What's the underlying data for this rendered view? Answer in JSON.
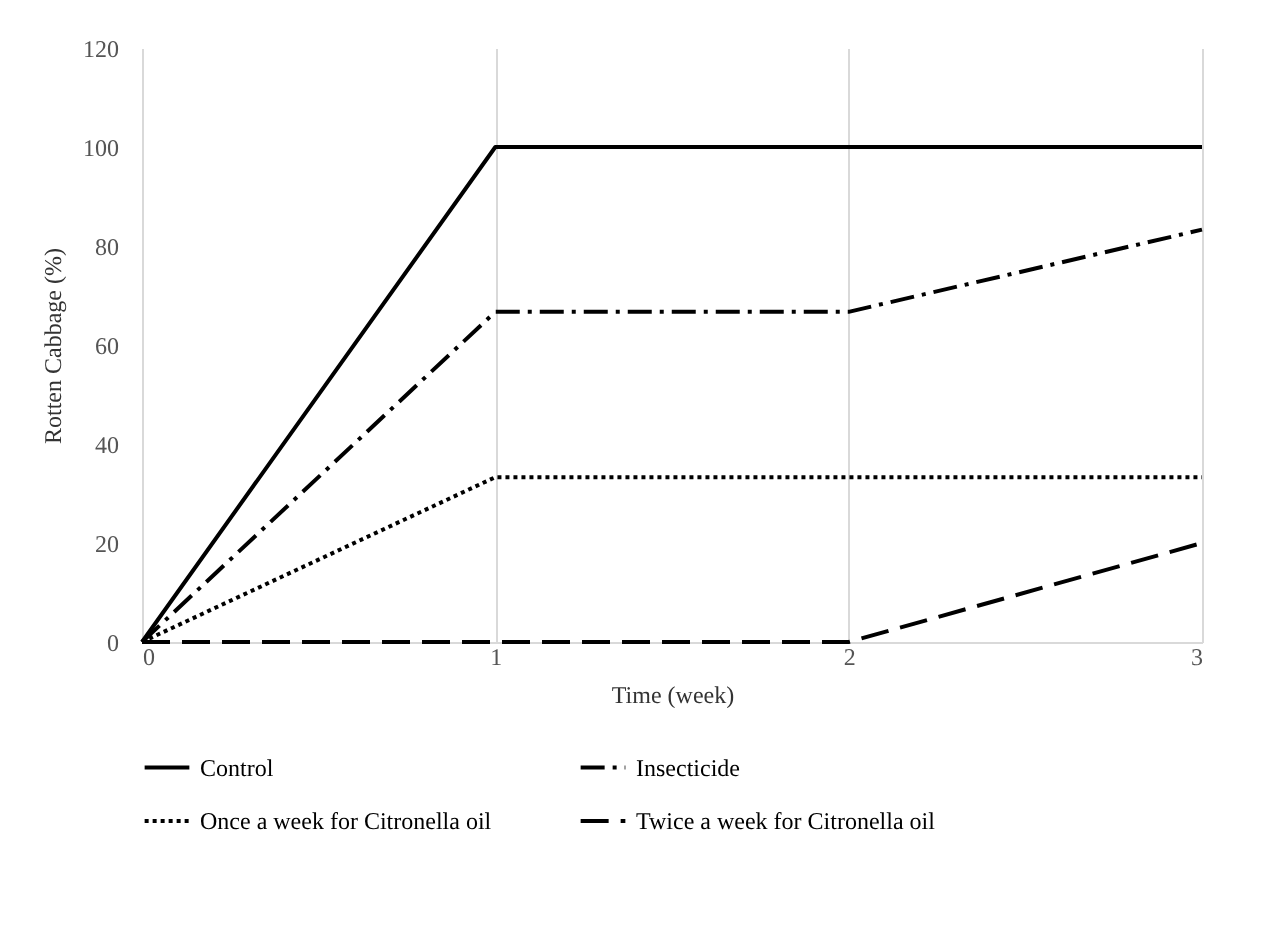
{
  "chart_data": {
    "type": "line",
    "xlabel": "Time (week)",
    "ylabel": "Rotten Cabbage (%)",
    "x": [
      0,
      1,
      2,
      3
    ],
    "xlim": [
      0,
      3
    ],
    "xticks": [
      0,
      1,
      2,
      3
    ],
    "ylim": [
      0,
      120
    ],
    "yticks": [
      0,
      20,
      40,
      60,
      80,
      100,
      120
    ],
    "grid": "x",
    "legend": "bottom",
    "marker": "none",
    "series": [
      {
        "name": "Control",
        "color": "#000000",
        "line_style": "solid",
        "values": [
          0,
          100,
          100,
          100
        ]
      },
      {
        "name": "Insecticide",
        "color": "#000000",
        "line_style": "dashdot",
        "values": [
          0,
          66.7,
          66.7,
          83.3
        ]
      },
      {
        "name": "Once a week for Citronella oil",
        "color": "#000000",
        "line_style": "dotted",
        "values": [
          0,
          33.3,
          33.3,
          33.3
        ]
      },
      {
        "name": "Twice a week for Citronella oil",
        "color": "#000000",
        "line_style": "dashed",
        "values": [
          0,
          0,
          0,
          20
        ]
      }
    ]
  }
}
